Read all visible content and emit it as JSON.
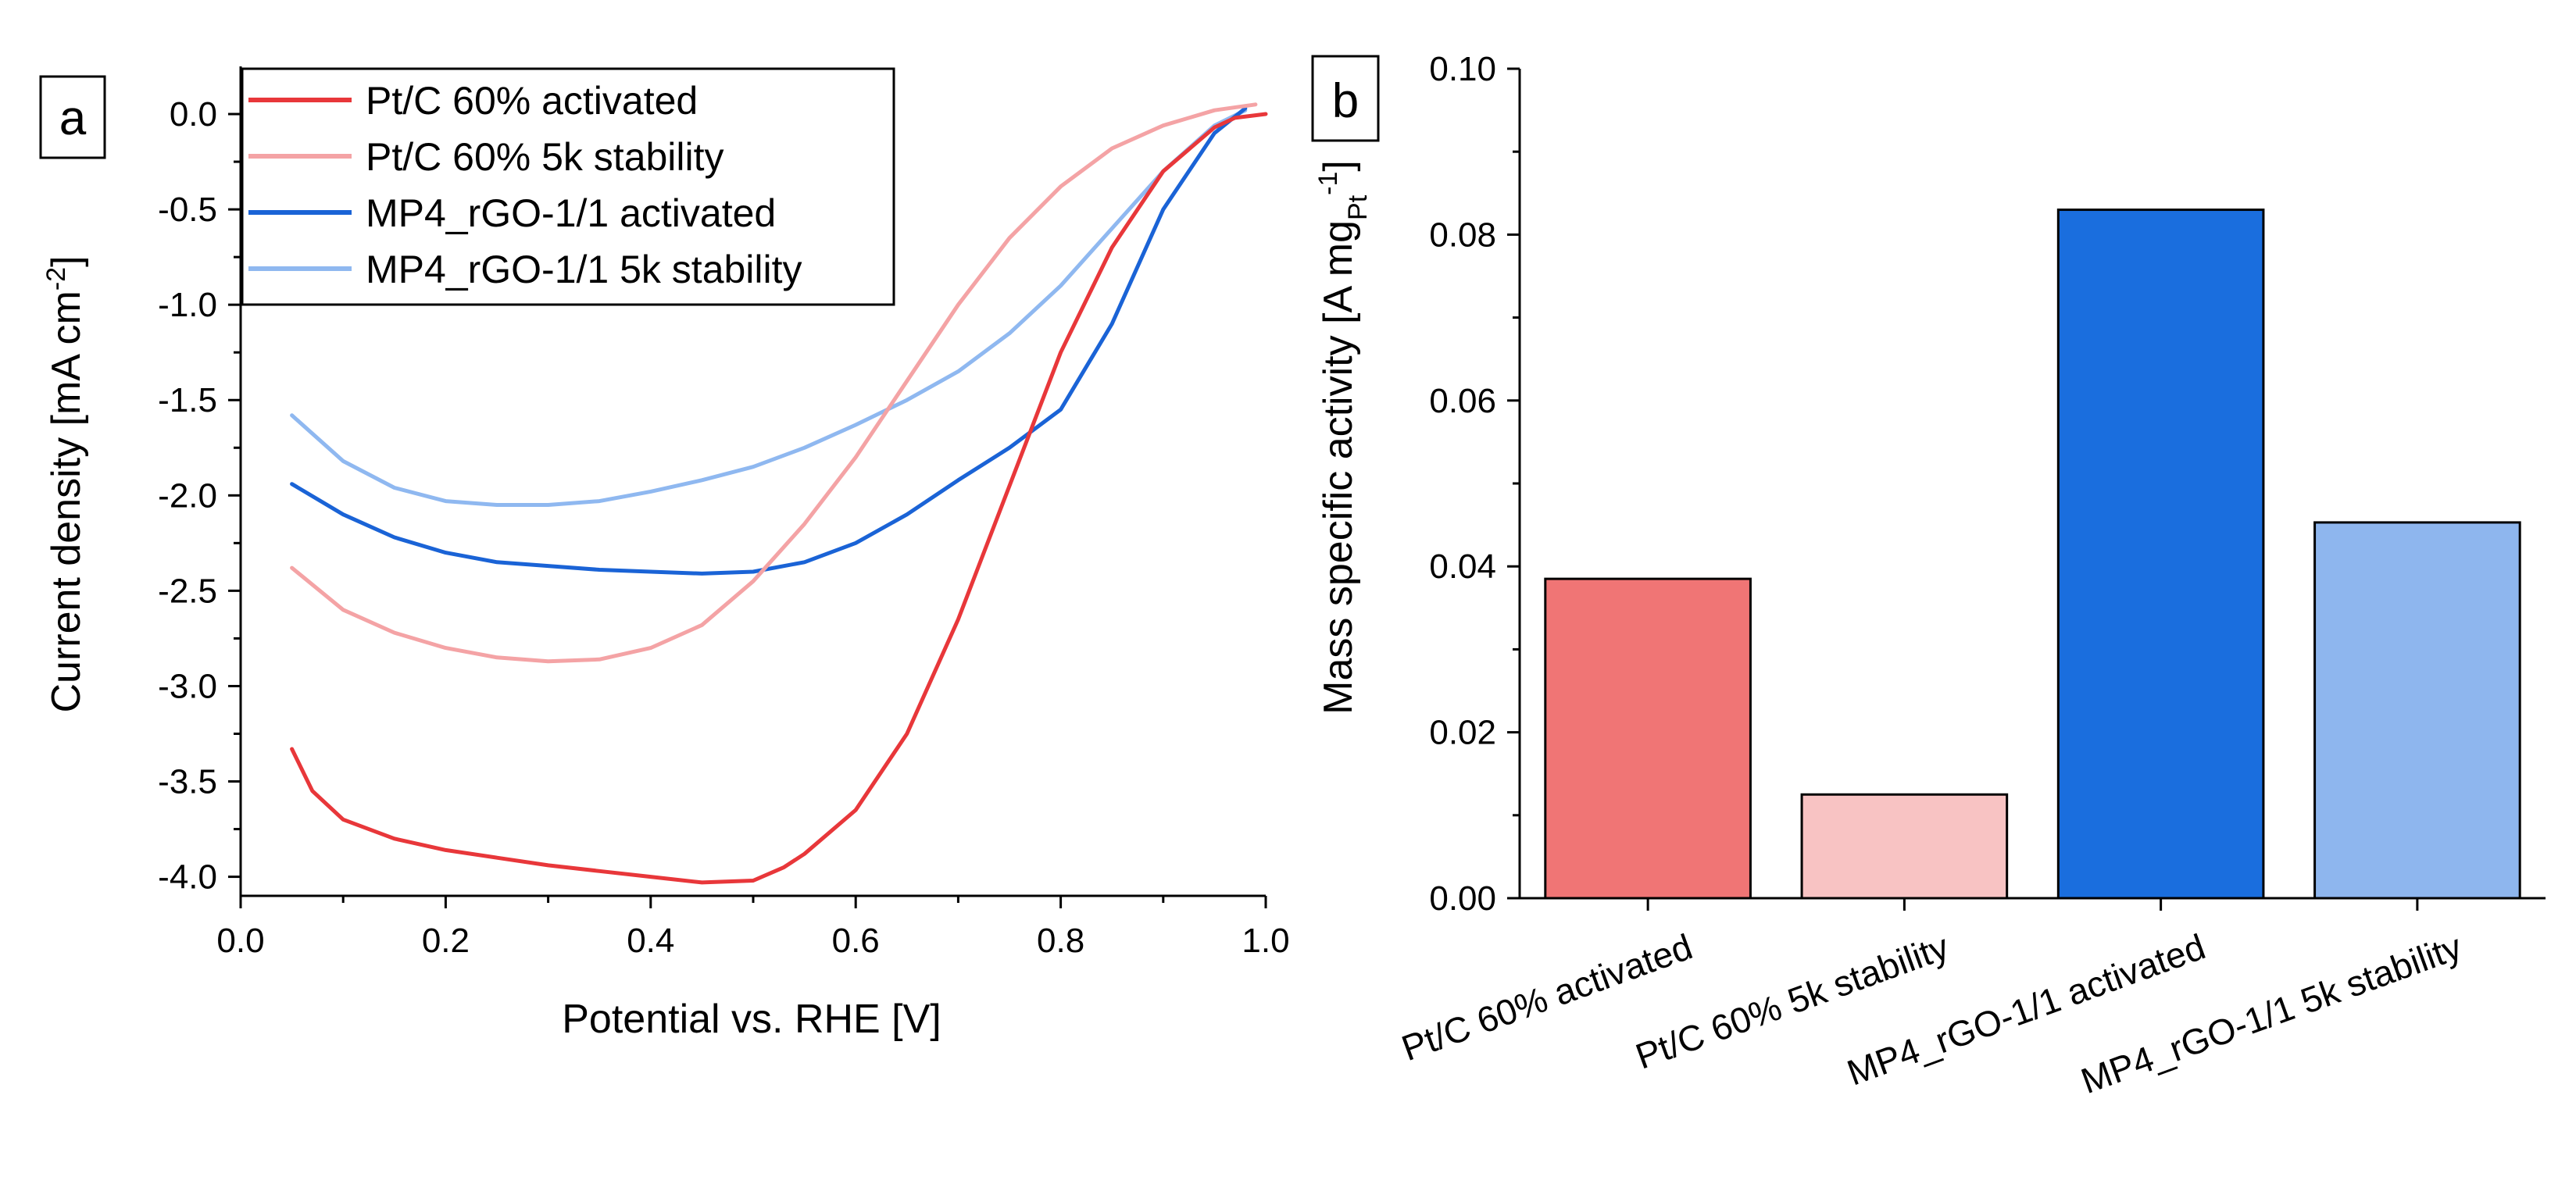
{
  "chart_data": [
    {
      "panel_label": "a",
      "type": "line",
      "xlabel": "Potential vs. RHE [V]",
      "ylabel_main": "Current density [mA cm",
      "ylabel_sup": "-2",
      "ylabel_end": "]",
      "xlim": [
        0.0,
        1.0
      ],
      "ylim": [
        -4.1,
        0.25
      ],
      "xticks": [
        0.0,
        0.2,
        0.4,
        0.6,
        0.8,
        1.0
      ],
      "xtick_labels": [
        "0.0",
        "0.2",
        "0.4",
        "0.6",
        "0.8",
        "1.0"
      ],
      "yticks": [
        0.0,
        -0.5,
        -1.0,
        -1.5,
        -2.0,
        -2.5,
        -3.0,
        -3.5,
        -4.0
      ],
      "ytick_labels": [
        "0.0",
        "-0.5",
        "-1.0",
        "-1.5",
        "-2.0",
        "-2.5",
        "-3.0",
        "-3.5",
        "-4.0"
      ],
      "legend_position": "top-left",
      "series": [
        {
          "name": "Pt/C 60% activated",
          "color": "#e8373a",
          "x": [
            0.05,
            0.07,
            0.1,
            0.15,
            0.2,
            0.25,
            0.3,
            0.35,
            0.4,
            0.45,
            0.5,
            0.53,
            0.55,
            0.6,
            0.65,
            0.7,
            0.75,
            0.8,
            0.85,
            0.9,
            0.95,
            0.97,
            1.0
          ],
          "y": [
            -3.33,
            -3.55,
            -3.7,
            -3.8,
            -3.86,
            -3.9,
            -3.94,
            -3.97,
            -4.0,
            -4.03,
            -4.02,
            -3.95,
            -3.88,
            -3.65,
            -3.25,
            -2.65,
            -1.95,
            -1.25,
            -0.7,
            -0.3,
            -0.07,
            -0.02,
            0.0
          ]
        },
        {
          "name": "Pt/C 60% 5k stability",
          "color": "#f4a3a5",
          "x": [
            0.05,
            0.1,
            0.15,
            0.2,
            0.25,
            0.3,
            0.35,
            0.4,
            0.45,
            0.5,
            0.55,
            0.6,
            0.65,
            0.7,
            0.75,
            0.8,
            0.85,
            0.9,
            0.95,
            0.99
          ],
          "y": [
            -2.38,
            -2.6,
            -2.72,
            -2.8,
            -2.85,
            -2.87,
            -2.86,
            -2.8,
            -2.68,
            -2.45,
            -2.15,
            -1.8,
            -1.4,
            -1.0,
            -0.65,
            -0.38,
            -0.18,
            -0.06,
            0.02,
            0.05
          ]
        },
        {
          "name": "MP4_rGO-1/1 activated",
          "color": "#1a63d6",
          "x": [
            0.05,
            0.1,
            0.15,
            0.2,
            0.25,
            0.3,
            0.35,
            0.4,
            0.45,
            0.5,
            0.55,
            0.6,
            0.65,
            0.7,
            0.75,
            0.8,
            0.85,
            0.9,
            0.95,
            0.98
          ],
          "y": [
            -1.94,
            -2.1,
            -2.22,
            -2.3,
            -2.35,
            -2.37,
            -2.39,
            -2.4,
            -2.41,
            -2.4,
            -2.35,
            -2.25,
            -2.1,
            -1.92,
            -1.75,
            -1.55,
            -1.1,
            -0.5,
            -0.1,
            0.03
          ]
        },
        {
          "name": "MP4_rGO-1/1 5k stability",
          "color": "#8fb8f0",
          "x": [
            0.05,
            0.1,
            0.15,
            0.2,
            0.25,
            0.3,
            0.35,
            0.4,
            0.45,
            0.5,
            0.55,
            0.6,
            0.65,
            0.7,
            0.75,
            0.8,
            0.85,
            0.9,
            0.95,
            0.98
          ],
          "y": [
            -1.58,
            -1.82,
            -1.96,
            -2.03,
            -2.05,
            -2.05,
            -2.03,
            -1.98,
            -1.92,
            -1.85,
            -1.75,
            -1.63,
            -1.5,
            -1.35,
            -1.15,
            -0.9,
            -0.6,
            -0.3,
            -0.06,
            0.02
          ]
        }
      ]
    },
    {
      "panel_label": "b",
      "type": "bar",
      "ylabel_main": "Mass specific activity [A mg",
      "ylabel_sub": "Pt",
      "ylabel_sup": "-1",
      "ylabel_end": "]",
      "ylim": [
        0.0,
        0.1
      ],
      "yticks": [
        0.0,
        0.02,
        0.04,
        0.06,
        0.08,
        0.1
      ],
      "ytick_labels": [
        "0.00",
        "0.02",
        "0.04",
        "0.06",
        "0.08",
        "0.10"
      ],
      "categories": [
        "Pt/C 60% activated",
        "Pt/C 60% 5k stability",
        "MP4_rGO-1/1 activated",
        "MP4_rGO-1/1 5k stability"
      ],
      "values": [
        0.0385,
        0.0125,
        0.083,
        0.0453
      ],
      "colors": [
        "#f07575",
        "#f8c3c3",
        "#1a6ede",
        "#8eb6ee"
      ]
    }
  ]
}
